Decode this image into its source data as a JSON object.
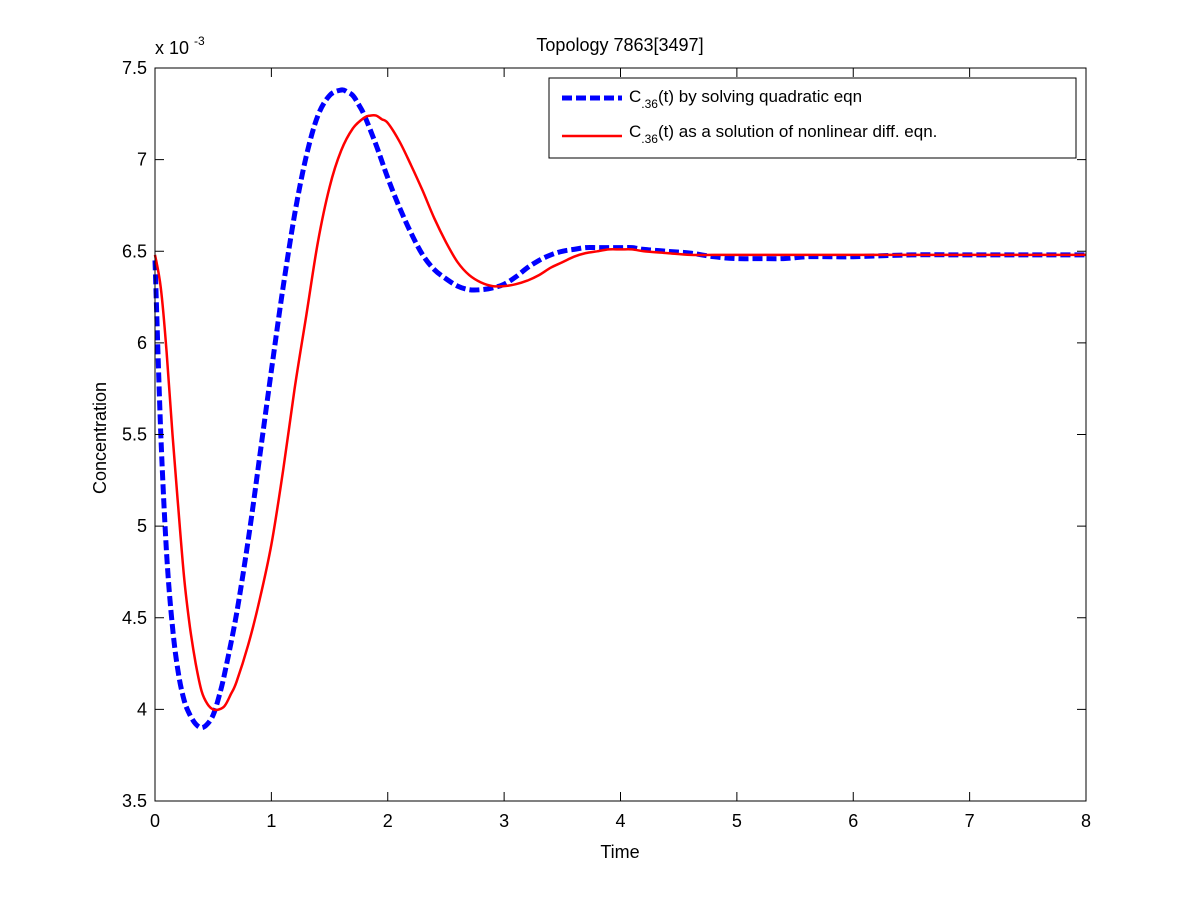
{
  "chart_data": {
    "type": "line",
    "title": "Topology 7863[3497]",
    "xlabel": "Time",
    "ylabel": "Concentration",
    "y_multiplier": {
      "base": "x 10",
      "exponent": "-3"
    },
    "xlim": [
      0,
      8
    ],
    "ylim": [
      3.5,
      7.5
    ],
    "x_ticks": [
      0,
      1,
      2,
      3,
      4,
      5,
      6,
      7,
      8
    ],
    "x_tick_labels": [
      "0",
      "1",
      "2",
      "3",
      "4",
      "5",
      "6",
      "7",
      "8"
    ],
    "y_ticks": [
      3.5,
      4,
      4.5,
      5,
      5.5,
      6,
      6.5,
      7,
      7.5
    ],
    "y_tick_labels": [
      "3.5",
      "4",
      "4.5",
      "5",
      "5.5",
      "6",
      "6.5",
      "7",
      "7.5"
    ],
    "grid": false,
    "legend_position": "top-right",
    "series": [
      {
        "name_main": "C",
        "name_sub": ".36",
        "name_rest": "(t) by solving quadratic eqn",
        "color": "#0000ff",
        "style": "dashed",
        "x": [
          0,
          0.05,
          0.1,
          0.15,
          0.2,
          0.25,
          0.3,
          0.35,
          0.4,
          0.45,
          0.5,
          0.55,
          0.6,
          0.7,
          0.8,
          0.9,
          1.0,
          1.1,
          1.2,
          1.3,
          1.4,
          1.5,
          1.6,
          1.65,
          1.7,
          1.75,
          1.8,
          1.9,
          2.0,
          2.1,
          2.2,
          2.3,
          2.4,
          2.5,
          2.6,
          2.7,
          2.8,
          2.9,
          3.0,
          3.1,
          3.2,
          3.3,
          3.4,
          3.5,
          3.6,
          3.7,
          3.8,
          3.9,
          4.0,
          4.1,
          4.2,
          4.4,
          4.6,
          4.8,
          5.0,
          5.2,
          5.4,
          5.6,
          5.8,
          6.0,
          6.5,
          7.0,
          7.5,
          8.0
        ],
        "y": [
          6.45,
          5.5,
          4.85,
          4.45,
          4.2,
          4.05,
          3.97,
          3.92,
          3.9,
          3.92,
          3.97,
          4.07,
          4.2,
          4.52,
          4.92,
          5.38,
          5.85,
          6.3,
          6.7,
          7.02,
          7.24,
          7.35,
          7.38,
          7.37,
          7.35,
          7.3,
          7.24,
          7.08,
          6.9,
          6.74,
          6.6,
          6.48,
          6.4,
          6.35,
          6.31,
          6.29,
          6.29,
          6.3,
          6.32,
          6.36,
          6.41,
          6.45,
          6.48,
          6.5,
          6.51,
          6.52,
          6.52,
          6.52,
          6.52,
          6.52,
          6.51,
          6.5,
          6.49,
          6.47,
          6.46,
          6.46,
          6.46,
          6.47,
          6.47,
          6.47,
          6.48,
          6.48,
          6.48,
          6.48
        ]
      },
      {
        "name_main": "C",
        "name_sub": ".36",
        "name_rest": "(t) as a solution of nonlinear diff. eqn.",
        "color": "#ff0000",
        "style": "solid",
        "x": [
          0,
          0.05,
          0.1,
          0.15,
          0.2,
          0.25,
          0.3,
          0.35,
          0.4,
          0.45,
          0.5,
          0.55,
          0.6,
          0.65,
          0.7,
          0.8,
          0.9,
          1.0,
          1.1,
          1.2,
          1.3,
          1.4,
          1.5,
          1.6,
          1.7,
          1.8,
          1.85,
          1.9,
          1.95,
          2.0,
          2.1,
          2.2,
          2.3,
          2.4,
          2.5,
          2.6,
          2.7,
          2.8,
          2.9,
          3.0,
          3.1,
          3.2,
          3.3,
          3.4,
          3.5,
          3.6,
          3.7,
          3.8,
          3.9,
          4.0,
          4.1,
          4.2,
          4.4,
          4.6,
          4.8,
          5.0,
          5.2,
          5.5,
          6.0,
          6.5,
          7.0,
          7.5,
          8.0
        ],
        "y": [
          6.48,
          6.3,
          5.95,
          5.5,
          5.1,
          4.72,
          4.45,
          4.25,
          4.1,
          4.03,
          4.0,
          4.0,
          4.02,
          4.08,
          4.15,
          4.35,
          4.6,
          4.9,
          5.3,
          5.75,
          6.15,
          6.55,
          6.85,
          7.05,
          7.17,
          7.23,
          7.24,
          7.24,
          7.22,
          7.2,
          7.1,
          6.97,
          6.83,
          6.68,
          6.55,
          6.44,
          6.37,
          6.33,
          6.31,
          6.31,
          6.32,
          6.34,
          6.37,
          6.41,
          6.44,
          6.47,
          6.49,
          6.5,
          6.51,
          6.51,
          6.51,
          6.5,
          6.49,
          6.48,
          6.48,
          6.48,
          6.48,
          6.48,
          6.48,
          6.48,
          6.48,
          6.48,
          6.48
        ]
      }
    ]
  }
}
